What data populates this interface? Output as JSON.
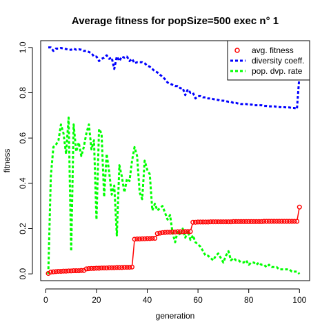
{
  "chart_data": {
    "type": "line",
    "title": "Average fitness for popSize=500 exec n° 1",
    "xlabel": "generation",
    "ylabel": "fitness",
    "xlim": [
      -2,
      104
    ],
    "ylim": [
      -0.03,
      1.03
    ],
    "xticks": [
      0,
      20,
      40,
      60,
      80,
      100
    ],
    "yticks": [
      0.0,
      0.2,
      0.4,
      0.6,
      0.8,
      1.0
    ],
    "ytick_labels": [
      "0.0",
      "0.2",
      "0.4",
      "0.6",
      "0.8",
      "1.0"
    ],
    "legend_position": "top-right",
    "grid": false,
    "series": [
      {
        "name": "avg. fitness",
        "style": "points+line",
        "color": "#ff0000",
        "x": [
          1,
          2,
          3,
          4,
          5,
          6,
          7,
          8,
          9,
          10,
          11,
          12,
          13,
          14,
          15,
          16,
          17,
          18,
          19,
          20,
          21,
          22,
          23,
          24,
          25,
          26,
          27,
          28,
          29,
          30,
          31,
          32,
          33,
          34,
          35,
          36,
          37,
          38,
          39,
          40,
          41,
          42,
          43,
          44,
          45,
          46,
          47,
          48,
          49,
          50,
          51,
          52,
          53,
          54,
          55,
          56,
          57,
          58,
          59,
          60,
          61,
          62,
          63,
          64,
          65,
          66,
          67,
          68,
          69,
          70,
          71,
          72,
          73,
          74,
          75,
          76,
          77,
          78,
          79,
          80,
          81,
          82,
          83,
          84,
          85,
          86,
          87,
          88,
          89,
          90,
          91,
          92,
          93,
          94,
          95,
          96,
          97,
          98,
          99,
          100
        ],
        "y": [
          0.002,
          0.008,
          0.009,
          0.01,
          0.011,
          0.011,
          0.012,
          0.012,
          0.013,
          0.013,
          0.014,
          0.014,
          0.014,
          0.015,
          0.015,
          0.022,
          0.023,
          0.024,
          0.024,
          0.025,
          0.025,
          0.026,
          0.026,
          0.026,
          0.027,
          0.027,
          0.027,
          0.028,
          0.028,
          0.028,
          0.029,
          0.029,
          0.029,
          0.03,
          0.153,
          0.154,
          0.154,
          0.155,
          0.155,
          0.156,
          0.156,
          0.157,
          0.157,
          0.178,
          0.18,
          0.182,
          0.183,
          0.184,
          0.184,
          0.185,
          0.185,
          0.186,
          0.186,
          0.186,
          0.187,
          0.187,
          0.187,
          0.228,
          0.228,
          0.229,
          0.229,
          0.229,
          0.229,
          0.229,
          0.23,
          0.23,
          0.23,
          0.23,
          0.23,
          0.23,
          0.23,
          0.23,
          0.23,
          0.231,
          0.231,
          0.231,
          0.231,
          0.231,
          0.231,
          0.231,
          0.231,
          0.231,
          0.231,
          0.231,
          0.231,
          0.232,
          0.232,
          0.232,
          0.232,
          0.232,
          0.232,
          0.232,
          0.232,
          0.232,
          0.232,
          0.232,
          0.232,
          0.232,
          0.232,
          0.295
        ]
      },
      {
        "name": "diversity coeff.",
        "style": "dashed",
        "color": "#0000ff",
        "x": [
          1,
          2,
          3,
          4,
          5,
          6,
          7,
          8,
          9,
          10,
          11,
          12,
          13,
          14,
          15,
          16,
          17,
          18,
          19,
          20,
          21,
          22,
          23,
          24,
          25,
          26,
          27,
          28,
          29,
          30,
          31,
          32,
          33,
          34,
          35,
          36,
          37,
          38,
          39,
          40,
          41,
          42,
          43,
          44,
          45,
          46,
          47,
          48,
          49,
          50,
          51,
          52,
          53,
          54,
          55,
          56,
          57,
          58,
          59,
          60,
          61,
          62,
          63,
          64,
          65,
          66,
          67,
          68,
          69,
          70,
          71,
          72,
          73,
          74,
          75,
          76,
          77,
          78,
          79,
          80,
          81,
          82,
          83,
          84,
          85,
          86,
          87,
          88,
          89,
          90,
          91,
          92,
          93,
          94,
          95,
          96,
          97,
          98,
          99,
          100
        ],
        "y": [
          1.0,
          1.0,
          0.985,
          0.995,
          0.995,
          0.998,
          0.995,
          0.993,
          0.99,
          0.99,
          0.995,
          0.99,
          0.992,
          0.99,
          0.985,
          0.985,
          0.98,
          0.975,
          0.96,
          0.96,
          0.94,
          0.95,
          0.955,
          0.965,
          0.95,
          0.955,
          0.905,
          0.96,
          0.94,
          0.96,
          0.955,
          0.96,
          0.94,
          0.95,
          0.93,
          0.935,
          0.935,
          0.935,
          0.93,
          0.92,
          0.915,
          0.905,
          0.895,
          0.89,
          0.88,
          0.87,
          0.86,
          0.845,
          0.84,
          0.835,
          0.83,
          0.83,
          0.82,
          0.82,
          0.79,
          0.815,
          0.8,
          0.8,
          0.775,
          0.785,
          0.785,
          0.78,
          0.78,
          0.775,
          0.775,
          0.772,
          0.77,
          0.768,
          0.765,
          0.765,
          0.763,
          0.76,
          0.76,
          0.755,
          0.755,
          0.752,
          0.75,
          0.75,
          0.75,
          0.748,
          0.748,
          0.745,
          0.745,
          0.745,
          0.745,
          0.742,
          0.742,
          0.74,
          0.74,
          0.74,
          0.738,
          0.737,
          0.736,
          0.736,
          0.735,
          0.735,
          0.733,
          0.733,
          0.728,
          0.88
        ]
      },
      {
        "name": "pop. dvp. rate",
        "style": "dashed",
        "color": "#00ff00",
        "x": [
          1,
          2,
          3,
          4,
          5,
          6,
          7,
          8,
          9,
          10,
          11,
          12,
          13,
          14,
          15,
          16,
          17,
          18,
          19,
          20,
          21,
          22,
          23,
          24,
          25,
          26,
          27,
          28,
          29,
          30,
          31,
          32,
          33,
          34,
          35,
          36,
          37,
          38,
          39,
          40,
          41,
          42,
          43,
          44,
          45,
          46,
          47,
          48,
          49,
          50,
          51,
          52,
          53,
          54,
          55,
          56,
          57,
          58,
          59,
          60,
          61,
          62,
          63,
          64,
          65,
          66,
          67,
          68,
          69,
          70,
          71,
          72,
          73,
          74,
          75,
          76,
          77,
          78,
          79,
          80,
          81,
          82,
          83,
          84,
          85,
          86,
          87,
          88,
          89,
          90,
          91,
          92,
          93,
          94,
          95,
          96,
          97,
          98,
          99,
          100
        ],
        "y": [
          0.0,
          0.43,
          0.56,
          0.57,
          0.59,
          0.66,
          0.62,
          0.53,
          0.69,
          0.1,
          0.66,
          0.54,
          0.58,
          0.52,
          0.56,
          0.62,
          0.66,
          0.55,
          0.59,
          0.24,
          0.64,
          0.62,
          0.34,
          0.53,
          0.45,
          0.35,
          0.39,
          0.17,
          0.48,
          0.43,
          0.36,
          0.42,
          0.41,
          0.5,
          0.56,
          0.52,
          0.36,
          0.33,
          0.5,
          0.46,
          0.44,
          0.28,
          0.31,
          0.28,
          0.29,
          0.3,
          0.27,
          0.24,
          0.26,
          0.18,
          0.14,
          0.19,
          0.17,
          0.2,
          0.16,
          0.19,
          0.15,
          0.17,
          0.14,
          0.13,
          0.12,
          0.1,
          0.08,
          0.08,
          0.07,
          0.06,
          0.08,
          0.09,
          0.07,
          0.05,
          0.08,
          0.1,
          0.06,
          0.07,
          0.06,
          0.06,
          0.05,
          0.05,
          0.06,
          0.04,
          0.05,
          0.05,
          0.04,
          0.05,
          0.04,
          0.04,
          0.03,
          0.04,
          0.03,
          0.03,
          0.03,
          0.02,
          0.02,
          0.02,
          0.02,
          0.02,
          0.01,
          0.01,
          0.01,
          0.0
        ]
      }
    ]
  }
}
